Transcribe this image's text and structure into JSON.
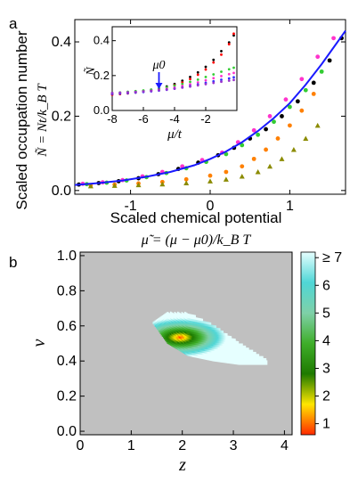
{
  "chart_data": [
    {
      "type": "scatter",
      "panel_label": "a",
      "ylabel_top": "Scaled occupation number",
      "ylabel_formula": "Ñ = Nt/k_B T",
      "xlabel_top": "Scaled chemical potential",
      "xlabel_formula": "μ̃ = (μ − μ0)/k_B T",
      "xlim": [
        -1.7,
        1.7
      ],
      "ylim": [
        -0.01,
        0.46
      ],
      "x_ticks": [
        -1,
        0,
        1
      ],
      "y_ticks": [
        0.0,
        0.2,
        0.4
      ],
      "x_tick_labels": [
        "-1",
        "0",
        "1"
      ],
      "y_tick_labels": [
        "0.0",
        "0.2",
        "0.4"
      ],
      "fit_line": {
        "color": "#1a1aff",
        "x": [
          -1.7,
          -1.4,
          -1.1,
          -0.8,
          -0.5,
          -0.2,
          0.0,
          0.2,
          0.4,
          0.6,
          0.8,
          1.0,
          1.2,
          1.4,
          1.6,
          1.7
        ],
        "y": [
          0.015,
          0.02,
          0.027,
          0.037,
          0.05,
          0.068,
          0.085,
          0.105,
          0.13,
          0.16,
          0.195,
          0.235,
          0.285,
          0.34,
          0.4,
          0.43
        ]
      },
      "series": [
        {
          "color": "#000000",
          "marker": "circle",
          "x": [
            -1.65,
            -1.4,
            -1.15,
            -0.9,
            -0.65,
            -0.4,
            -0.15,
            0.1,
            0.3,
            0.5,
            0.7,
            0.9,
            1.1,
            1.3,
            1.5,
            1.65
          ],
          "y": [
            0.016,
            0.02,
            0.025,
            0.033,
            0.044,
            0.058,
            0.075,
            0.095,
            0.115,
            0.14,
            0.165,
            0.2,
            0.24,
            0.29,
            0.35,
            0.41
          ]
        },
        {
          "color": "#ff33cc",
          "marker": "circle",
          "x": [
            -1.6,
            -1.35,
            -1.1,
            -0.85,
            -0.6,
            -0.35,
            -0.1,
            0.15,
            0.35,
            0.55,
            0.75,
            0.95,
            1.15,
            1.35,
            1.55
          ],
          "y": [
            0.018,
            0.022,
            0.028,
            0.038,
            0.05,
            0.065,
            0.082,
            0.102,
            0.13,
            0.162,
            0.2,
            0.245,
            0.3,
            0.36,
            0.41
          ]
        },
        {
          "color": "#33cc33",
          "marker": "circle",
          "x": [
            -1.55,
            -1.3,
            -1.05,
            -0.8,
            -0.55,
            -0.3,
            -0.05,
            0.2,
            0.4,
            0.6,
            0.8,
            1.0,
            1.2,
            1.4
          ],
          "y": [
            0.017,
            0.021,
            0.027,
            0.036,
            0.047,
            0.06,
            0.077,
            0.098,
            0.122,
            0.15,
            0.185,
            0.225,
            0.27,
            0.32
          ]
        },
        {
          "color": "#ff8000",
          "marker": "circle",
          "x": [
            -1.5,
            -1.2,
            -0.9,
            -0.6,
            -0.3,
            0.0,
            0.2,
            0.4,
            0.55,
            0.7,
            0.85,
            1.0,
            1.15,
            1.3
          ],
          "y": [
            0.014,
            0.016,
            0.019,
            0.023,
            0.03,
            0.04,
            0.05,
            0.065,
            0.085,
            0.11,
            0.14,
            0.175,
            0.215,
            0.26
          ]
        },
        {
          "color": "#8b8b00",
          "marker": "triangle",
          "x": [
            -1.5,
            -1.2,
            -0.9,
            -0.6,
            -0.3,
            0.0,
            0.2,
            0.4,
            0.6,
            0.75,
            0.9,
            1.05,
            1.2,
            1.35
          ],
          "y": [
            0.012,
            0.013,
            0.015,
            0.017,
            0.02,
            0.025,
            0.03,
            0.038,
            0.05,
            0.065,
            0.085,
            0.11,
            0.14,
            0.175
          ]
        }
      ]
    },
    {
      "type": "scatter",
      "inset": true,
      "ylabel": "Ñ",
      "xlabel": "μ/t",
      "annotation": "μ0",
      "annotation_x": -5,
      "xlim": [
        -8,
        0
      ],
      "ylim": [
        0,
        0.48
      ],
      "x_ticks": [
        -8,
        -6,
        -4,
        -2
      ],
      "y_ticks": [
        0.0,
        0.2,
        0.4
      ],
      "x_tick_labels": [
        "-8",
        "-6",
        "-4",
        "-2"
      ],
      "y_tick_labels": [
        "0.0",
        "0.2",
        "0.4"
      ],
      "series": [
        {
          "color": "#000000",
          "x": [
            -8,
            -7.5,
            -7,
            -6.5,
            -6,
            -5.5,
            -5,
            -4.5,
            -4,
            -3.5,
            -3,
            -2.5,
            -2,
            -1.5,
            -1,
            -0.5,
            -0.2
          ],
          "y": [
            0.1,
            0.102,
            0.105,
            0.108,
            0.112,
            0.118,
            0.126,
            0.138,
            0.152,
            0.17,
            0.192,
            0.218,
            0.25,
            0.29,
            0.34,
            0.39,
            0.43
          ]
        },
        {
          "color": "#ff0000",
          "x": [
            -8,
            -7.5,
            -7,
            -6.5,
            -6,
            -5.5,
            -5,
            -4.5,
            -4,
            -3.5,
            -3,
            -2.5,
            -2,
            -1.5,
            -1,
            -0.5,
            -0.2
          ],
          "y": [
            0.09,
            0.094,
            0.098,
            0.103,
            0.108,
            0.114,
            0.122,
            0.132,
            0.145,
            0.16,
            0.18,
            0.205,
            0.235,
            0.275,
            0.32,
            0.38,
            0.44
          ]
        },
        {
          "color": "#33cc33",
          "x": [
            -8,
            -7.5,
            -7,
            -6.5,
            -6,
            -5.5,
            -5,
            -4.5,
            -4,
            -3.5,
            -3,
            -2.5,
            -2,
            -1.5,
            -1,
            -0.5,
            -0.2
          ],
          "y": [
            0.1,
            0.103,
            0.107,
            0.111,
            0.115,
            0.12,
            0.126,
            0.133,
            0.142,
            0.152,
            0.164,
            0.177,
            0.192,
            0.207,
            0.222,
            0.236,
            0.245
          ]
        },
        {
          "color": "#ff33cc",
          "x": [
            -8,
            -7.5,
            -7,
            -6.5,
            -6,
            -5.5,
            -5,
            -4.5,
            -4,
            -3.5,
            -3,
            -2.5,
            -2,
            -1.5,
            -1,
            -0.5,
            -0.2
          ],
          "y": [
            0.098,
            0.1,
            0.103,
            0.106,
            0.109,
            0.113,
            0.118,
            0.124,
            0.131,
            0.14,
            0.15,
            0.161,
            0.173,
            0.185,
            0.197,
            0.208,
            0.215
          ]
        },
        {
          "color": "#3333ff",
          "x": [
            -8,
            -7.5,
            -7,
            -6.5,
            -6,
            -5.5,
            -5,
            -4.5,
            -4,
            -3.5,
            -3,
            -2.5,
            -2,
            -1.5,
            -1,
            -0.5,
            -0.2
          ],
          "y": [
            0.095,
            0.097,
            0.1,
            0.103,
            0.106,
            0.11,
            0.114,
            0.119,
            0.125,
            0.132,
            0.14,
            0.149,
            0.158,
            0.167,
            0.176,
            0.184,
            0.19
          ]
        },
        {
          "color": "#9933cc",
          "x": [
            -8,
            -7.5,
            -7,
            -6.5,
            -6,
            -5.5,
            -5,
            -4.5,
            -4,
            -3.5,
            -3,
            -2.5,
            -2,
            -1.5,
            -1,
            -0.5,
            -0.2
          ],
          "y": [
            0.1,
            0.102,
            0.104,
            0.106,
            0.109,
            0.112,
            0.116,
            0.12,
            0.125,
            0.131,
            0.137,
            0.144,
            0.151,
            0.158,
            0.165,
            0.171,
            0.175
          ]
        }
      ]
    },
    {
      "type": "heatmap",
      "panel_label": "b",
      "xlabel": "z",
      "ylabel": "ν",
      "xlim": [
        0,
        4.15
      ],
      "ylim": [
        -0.02,
        1.02
      ],
      "x_ticks": [
        0,
        1,
        2,
        3,
        4
      ],
      "y_ticks": [
        0.0,
        0.2,
        0.4,
        0.6,
        0.8,
        1.0
      ],
      "x_tick_labels": [
        "0",
        "1",
        "2",
        "3",
        "4"
      ],
      "y_tick_labels": [
        "0.0",
        "0.2",
        "0.4",
        "0.6",
        "0.8",
        "1.0"
      ],
      "background_color": "#c0c0c0",
      "region": {
        "min_x": 1.4,
        "max_x": 3.65,
        "upper_edge": [
          [
            1.4,
            0.62
          ],
          [
            1.7,
            0.67
          ],
          [
            2.1,
            0.67
          ],
          [
            2.6,
            0.6
          ],
          [
            3.1,
            0.5
          ],
          [
            3.65,
            0.4
          ]
        ],
        "lower_edge": [
          [
            1.4,
            0.62
          ],
          [
            1.7,
            0.5
          ],
          [
            2.1,
            0.43
          ],
          [
            2.6,
            0.4
          ],
          [
            3.1,
            0.38
          ],
          [
            3.65,
            0.38
          ]
        ],
        "center": [
          1.95,
          0.53
        ],
        "min_value": 1,
        "max_value": 7
      },
      "colorbar": {
        "min": 1,
        "max": 7,
        "tick_values": [
          1,
          2,
          3,
          4,
          5,
          6,
          7
        ],
        "tick_labels": [
          "1",
          "2",
          "3",
          "4",
          "5",
          "6",
          "≥ 7"
        ],
        "colors": [
          "#ff2a00",
          "#ffe600",
          "#1e7a00",
          "#3fae2a",
          "#7fd0a8",
          "#4fd6d6",
          "#e6ffff"
        ]
      }
    }
  ]
}
